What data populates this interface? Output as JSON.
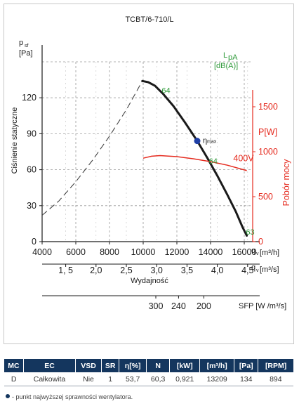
{
  "chart_data": {
    "type": "line",
    "title": "TCBT/6-710/L",
    "ylabel_top": "p",
    "ylabel_sub": "sf",
    "yunit": "[Pa]",
    "ylabel_side": "Ciśnienie statyczne",
    "ylim": [
      0,
      150
    ],
    "yticks": [
      "0",
      "30",
      "60",
      "90",
      "120"
    ],
    "xlim": [
      4000,
      16500
    ],
    "xticks_m3h": [
      "4000",
      "6000",
      "8000",
      "10000",
      "12000",
      "14000",
      "16000"
    ],
    "xlabel_m3h": "q",
    "xlabel_m3h_sub": "v",
    "xunit_m3h": "[m³/h]",
    "xticks_m3s": [
      "1, 5",
      "2,0",
      "2,5",
      "3,0",
      "3,5",
      "4,0",
      "4,5"
    ],
    "xticks_m3s_values": [
      1.5,
      2.0,
      2.5,
      3.0,
      3.5,
      4.0,
      4.5
    ],
    "xlabel_m3s": "q",
    "xlabel_m3s_sub": "v",
    "xunit_m3s": "[m³/s]",
    "xlabel_center": "Wydajność",
    "sfp_ticks": [
      "300",
      "240",
      "200"
    ],
    "sfp_ticks_x": [
      10750,
      12100,
      13600
    ],
    "sfp_label": "SFP [W /m³/s]",
    "power_axis_label_top": "P[W]",
    "power_axis_label_side": "Pobór mocy",
    "power_ylim": [
      0,
      2000
    ],
    "power_ticks": [
      "0",
      "500",
      "1000",
      "1500"
    ],
    "lpa_label": "L",
    "lpa_sub": "pA",
    "lpa_unit": "[dB(A)]",
    "eta_label": "η",
    "eta_sub": "max",
    "voltage_label": "400V",
    "series": [
      {
        "role": "pressure-dashed",
        "color": "#444444",
        "x": [
          4000,
          5000,
          6000,
          7000,
          8000,
          9000,
          9950
        ],
        "y": [
          22,
          34,
          50,
          68,
          88,
          110,
          134
        ]
      },
      {
        "role": "pressure-solid",
        "color": "#1a1a1a",
        "x": [
          9950,
          10300,
          10700,
          11200,
          11800,
          12500,
          13209,
          13800,
          14400,
          15000,
          15500,
          15900,
          16150
        ],
        "y": [
          134,
          133,
          130,
          123,
          113,
          99,
          84,
          70,
          55,
          39,
          25,
          12,
          5
        ]
      },
      {
        "role": "power",
        "color": "#e52b1f",
        "x": [
          10000,
          10500,
          11000,
          12000,
          13000,
          14000,
          15000,
          16150
        ],
        "y": [
          928,
          950,
          957,
          945,
          921,
          890,
          850,
          790
        ]
      }
    ],
    "operating_point": {
      "x": 13209,
      "y": 84
    },
    "lpa_markers": [
      {
        "label": "64",
        "x": 11100,
        "y": 124
      },
      {
        "label": "64",
        "x": 13900,
        "y": 65
      },
      {
        "label": "63",
        "x": 16100,
        "y": 6
      }
    ]
  },
  "table": {
    "headers": [
      "MC",
      "EC",
      "VSD",
      "SR",
      "η[%]",
      "N",
      "[kW]",
      "[m³/h]",
      "[Pa]",
      "[RPM]"
    ],
    "row": [
      "D",
      "Całkowita",
      "Nie",
      "1",
      "53,7",
      "60,3",
      "0,921",
      "13209",
      "134",
      "894"
    ]
  },
  "footnote": "- punkt najwyższej sprawności wentylatora.",
  "colors": {
    "header_bg": "#14365e",
    "power": "#e52b1f",
    "lpa": "#2f9a3a",
    "operating_point": "#1f3fa6"
  }
}
